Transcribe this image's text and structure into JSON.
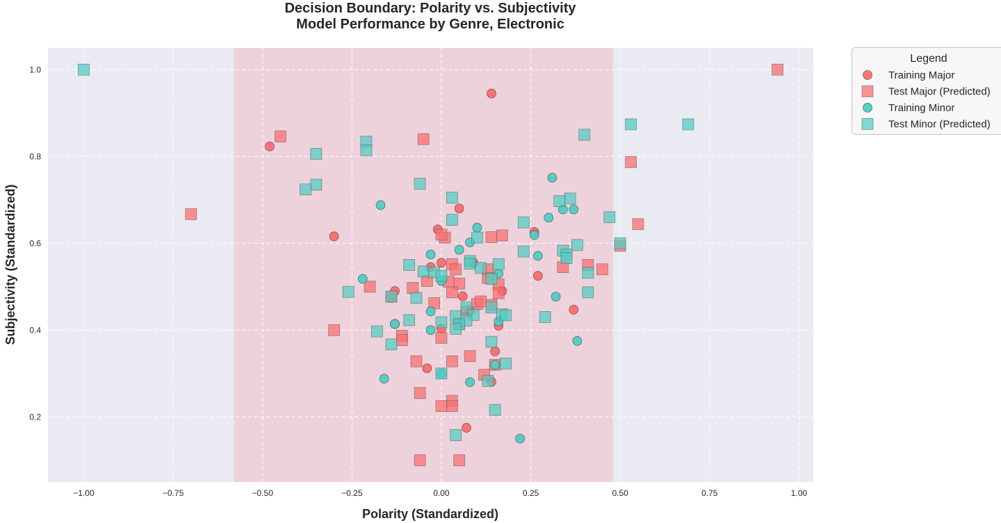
{
  "chart_data": {
    "type": "scatter",
    "title_line1": "Decision Boundary: Polarity vs. Subjectivity",
    "title_line2": "Model Performance by Genre, Electronic",
    "xlabel": "Polarity (Standardized)",
    "ylabel": "Subjectivity (Standardized)",
    "xlim": [
      -1.1,
      1.04
    ],
    "ylim": [
      0.05,
      1.05
    ],
    "xticks": [
      -1.0,
      -0.75,
      -0.5,
      -0.25,
      0.0,
      0.25,
      0.5,
      0.75,
      1.0
    ],
    "xtick_labels": [
      "−1.00",
      "−0.75",
      "−0.50",
      "−0.25",
      "0.00",
      "0.25",
      "0.50",
      "0.75",
      "1.00"
    ],
    "yticks": [
      0.2,
      0.4,
      0.6,
      0.8,
      1.0
    ],
    "ytick_labels": [
      "0.2",
      "0.4",
      "0.6",
      "0.8",
      "1.0"
    ],
    "grid": true,
    "background_color": "#eaeaf2",
    "decision_region": {
      "x_start": -0.58,
      "x_end": 0.48,
      "color": "#f4b6bf"
    },
    "legend": {
      "title": "Legend",
      "placement": "outside-top-right"
    },
    "series": [
      {
        "name": "Training Major",
        "marker": "circle",
        "color": "#ff6b6b",
        "points": [
          [
            0.14,
            0.945
          ],
          [
            -0.48,
            0.823
          ],
          [
            0.05,
            0.68
          ],
          [
            -0.3,
            0.616
          ],
          [
            -0.01,
            0.632
          ],
          [
            0.26,
            0.626
          ],
          [
            0.0,
            0.555
          ],
          [
            0.09,
            0.555
          ],
          [
            -0.03,
            0.545
          ],
          [
            0.27,
            0.525
          ],
          [
            -0.13,
            0.49
          ],
          [
            0.06,
            0.478
          ],
          [
            -0.14,
            0.474
          ],
          [
            0.17,
            0.49
          ],
          [
            0.37,
            0.447
          ],
          [
            0.08,
            0.446
          ],
          [
            -0.13,
            0.414
          ],
          [
            0.0,
            0.403
          ],
          [
            0.16,
            0.41
          ],
          [
            0.15,
            0.351
          ],
          [
            -0.04,
            0.312
          ],
          [
            0.14,
            0.281
          ],
          [
            0.07,
            0.175
          ]
        ]
      },
      {
        "name": "Test Major (Predicted)",
        "marker": "square",
        "color": "#ff6b6b",
        "points": [
          [
            -0.45,
            0.846
          ],
          [
            -0.05,
            0.84
          ],
          [
            0.94,
            1.0
          ],
          [
            -0.7,
            0.667
          ],
          [
            0.53,
            0.787
          ],
          [
            0.55,
            0.644
          ],
          [
            0.14,
            0.614
          ],
          [
            0.17,
            0.618
          ],
          [
            0.01,
            0.613
          ],
          [
            0.0,
            0.62
          ],
          [
            0.5,
            0.594
          ],
          [
            0.41,
            0.55
          ],
          [
            0.34,
            0.545
          ],
          [
            0.45,
            0.54
          ],
          [
            0.03,
            0.552
          ],
          [
            0.04,
            0.54
          ],
          [
            0.13,
            0.54
          ],
          [
            -0.04,
            0.513
          ],
          [
            0.13,
            0.52
          ],
          [
            0.05,
            0.507
          ],
          [
            0.02,
            0.512
          ],
          [
            0.16,
            0.505
          ],
          [
            -0.2,
            0.5
          ],
          [
            -0.08,
            0.497
          ],
          [
            0.03,
            0.487
          ],
          [
            0.16,
            0.485
          ],
          [
            -0.14,
            0.477
          ],
          [
            0.1,
            0.46
          ],
          [
            0.11,
            0.466
          ],
          [
            -0.02,
            0.462
          ],
          [
            0.14,
            0.458
          ],
          [
            0.07,
            0.443
          ],
          [
            0.05,
            0.415
          ],
          [
            -0.3,
            0.4
          ],
          [
            -0.11,
            0.387
          ],
          [
            -0.11,
            0.377
          ],
          [
            0.0,
            0.382
          ],
          [
            0.08,
            0.34
          ],
          [
            -0.07,
            0.328
          ],
          [
            0.03,
            0.328
          ],
          [
            0.15,
            0.32
          ],
          [
            0.12,
            0.297
          ],
          [
            -0.06,
            0.255
          ],
          [
            0.03,
            0.237
          ],
          [
            0.0,
            0.225
          ],
          [
            0.03,
            0.225
          ],
          [
            -0.06,
            0.1
          ],
          [
            0.05,
            0.1
          ]
        ]
      },
      {
        "name": "Training Minor",
        "marker": "circle",
        "color": "#4ecdc4",
        "points": [
          [
            0.31,
            0.751
          ],
          [
            -0.17,
            0.688
          ],
          [
            0.34,
            0.678
          ],
          [
            0.37,
            0.678
          ],
          [
            0.3,
            0.659
          ],
          [
            0.1,
            0.636
          ],
          [
            0.26,
            0.619
          ],
          [
            0.08,
            0.602
          ],
          [
            0.05,
            0.585
          ],
          [
            -0.03,
            0.574
          ],
          [
            0.27,
            0.571
          ],
          [
            0.16,
            0.53
          ],
          [
            -0.22,
            0.518
          ],
          [
            0.0,
            0.513
          ],
          [
            0.32,
            0.477
          ],
          [
            -0.03,
            0.443
          ],
          [
            0.16,
            0.42
          ],
          [
            -0.13,
            0.414
          ],
          [
            -0.03,
            0.4
          ],
          [
            0.38,
            0.375
          ],
          [
            0.15,
            0.32
          ],
          [
            0.0,
            0.3
          ],
          [
            -0.16,
            0.288
          ],
          [
            0.08,
            0.28
          ],
          [
            0.22,
            0.15
          ]
        ]
      },
      {
        "name": "Test Minor (Predicted)",
        "marker": "square",
        "color": "#4ecdc4",
        "points": [
          [
            -1.0,
            1.0
          ],
          [
            0.4,
            0.85
          ],
          [
            0.53,
            0.874
          ],
          [
            0.69,
            0.874
          ],
          [
            -0.21,
            0.834
          ],
          [
            -0.21,
            0.814
          ],
          [
            -0.35,
            0.806
          ],
          [
            -0.06,
            0.737
          ],
          [
            -0.35,
            0.735
          ],
          [
            -0.38,
            0.724
          ],
          [
            0.03,
            0.705
          ],
          [
            0.36,
            0.703
          ],
          [
            0.33,
            0.697
          ],
          [
            0.47,
            0.66
          ],
          [
            0.03,
            0.654
          ],
          [
            0.23,
            0.648
          ],
          [
            0.1,
            0.613
          ],
          [
            0.5,
            0.6
          ],
          [
            0.38,
            0.596
          ],
          [
            0.23,
            0.581
          ],
          [
            0.34,
            0.583
          ],
          [
            0.35,
            0.574
          ],
          [
            0.35,
            0.566
          ],
          [
            0.08,
            0.559
          ],
          [
            0.08,
            0.553
          ],
          [
            0.16,
            0.552
          ],
          [
            -0.09,
            0.55
          ],
          [
            0.11,
            0.543
          ],
          [
            -0.05,
            0.535
          ],
          [
            0.41,
            0.532
          ],
          [
            -0.02,
            0.533
          ],
          [
            0.0,
            0.525
          ],
          [
            0.14,
            0.518
          ],
          [
            -0.26,
            0.488
          ],
          [
            0.41,
            0.487
          ],
          [
            -0.14,
            0.477
          ],
          [
            -0.07,
            0.474
          ],
          [
            0.07,
            0.452
          ],
          [
            0.14,
            0.452
          ],
          [
            0.04,
            0.432
          ],
          [
            0.09,
            0.435
          ],
          [
            0.17,
            0.436
          ],
          [
            0.18,
            0.434
          ],
          [
            0.29,
            0.43
          ],
          [
            -0.09,
            0.423
          ],
          [
            0.07,
            0.422
          ],
          [
            0.05,
            0.413
          ],
          [
            0.0,
            0.418
          ],
          [
            0.04,
            0.403
          ],
          [
            -0.18,
            0.397
          ],
          [
            0.14,
            0.373
          ],
          [
            -0.14,
            0.367
          ],
          [
            0.18,
            0.323
          ],
          [
            0.0,
            0.3
          ],
          [
            0.13,
            0.283
          ],
          [
            0.15,
            0.216
          ],
          [
            0.04,
            0.158
          ]
        ]
      }
    ]
  }
}
